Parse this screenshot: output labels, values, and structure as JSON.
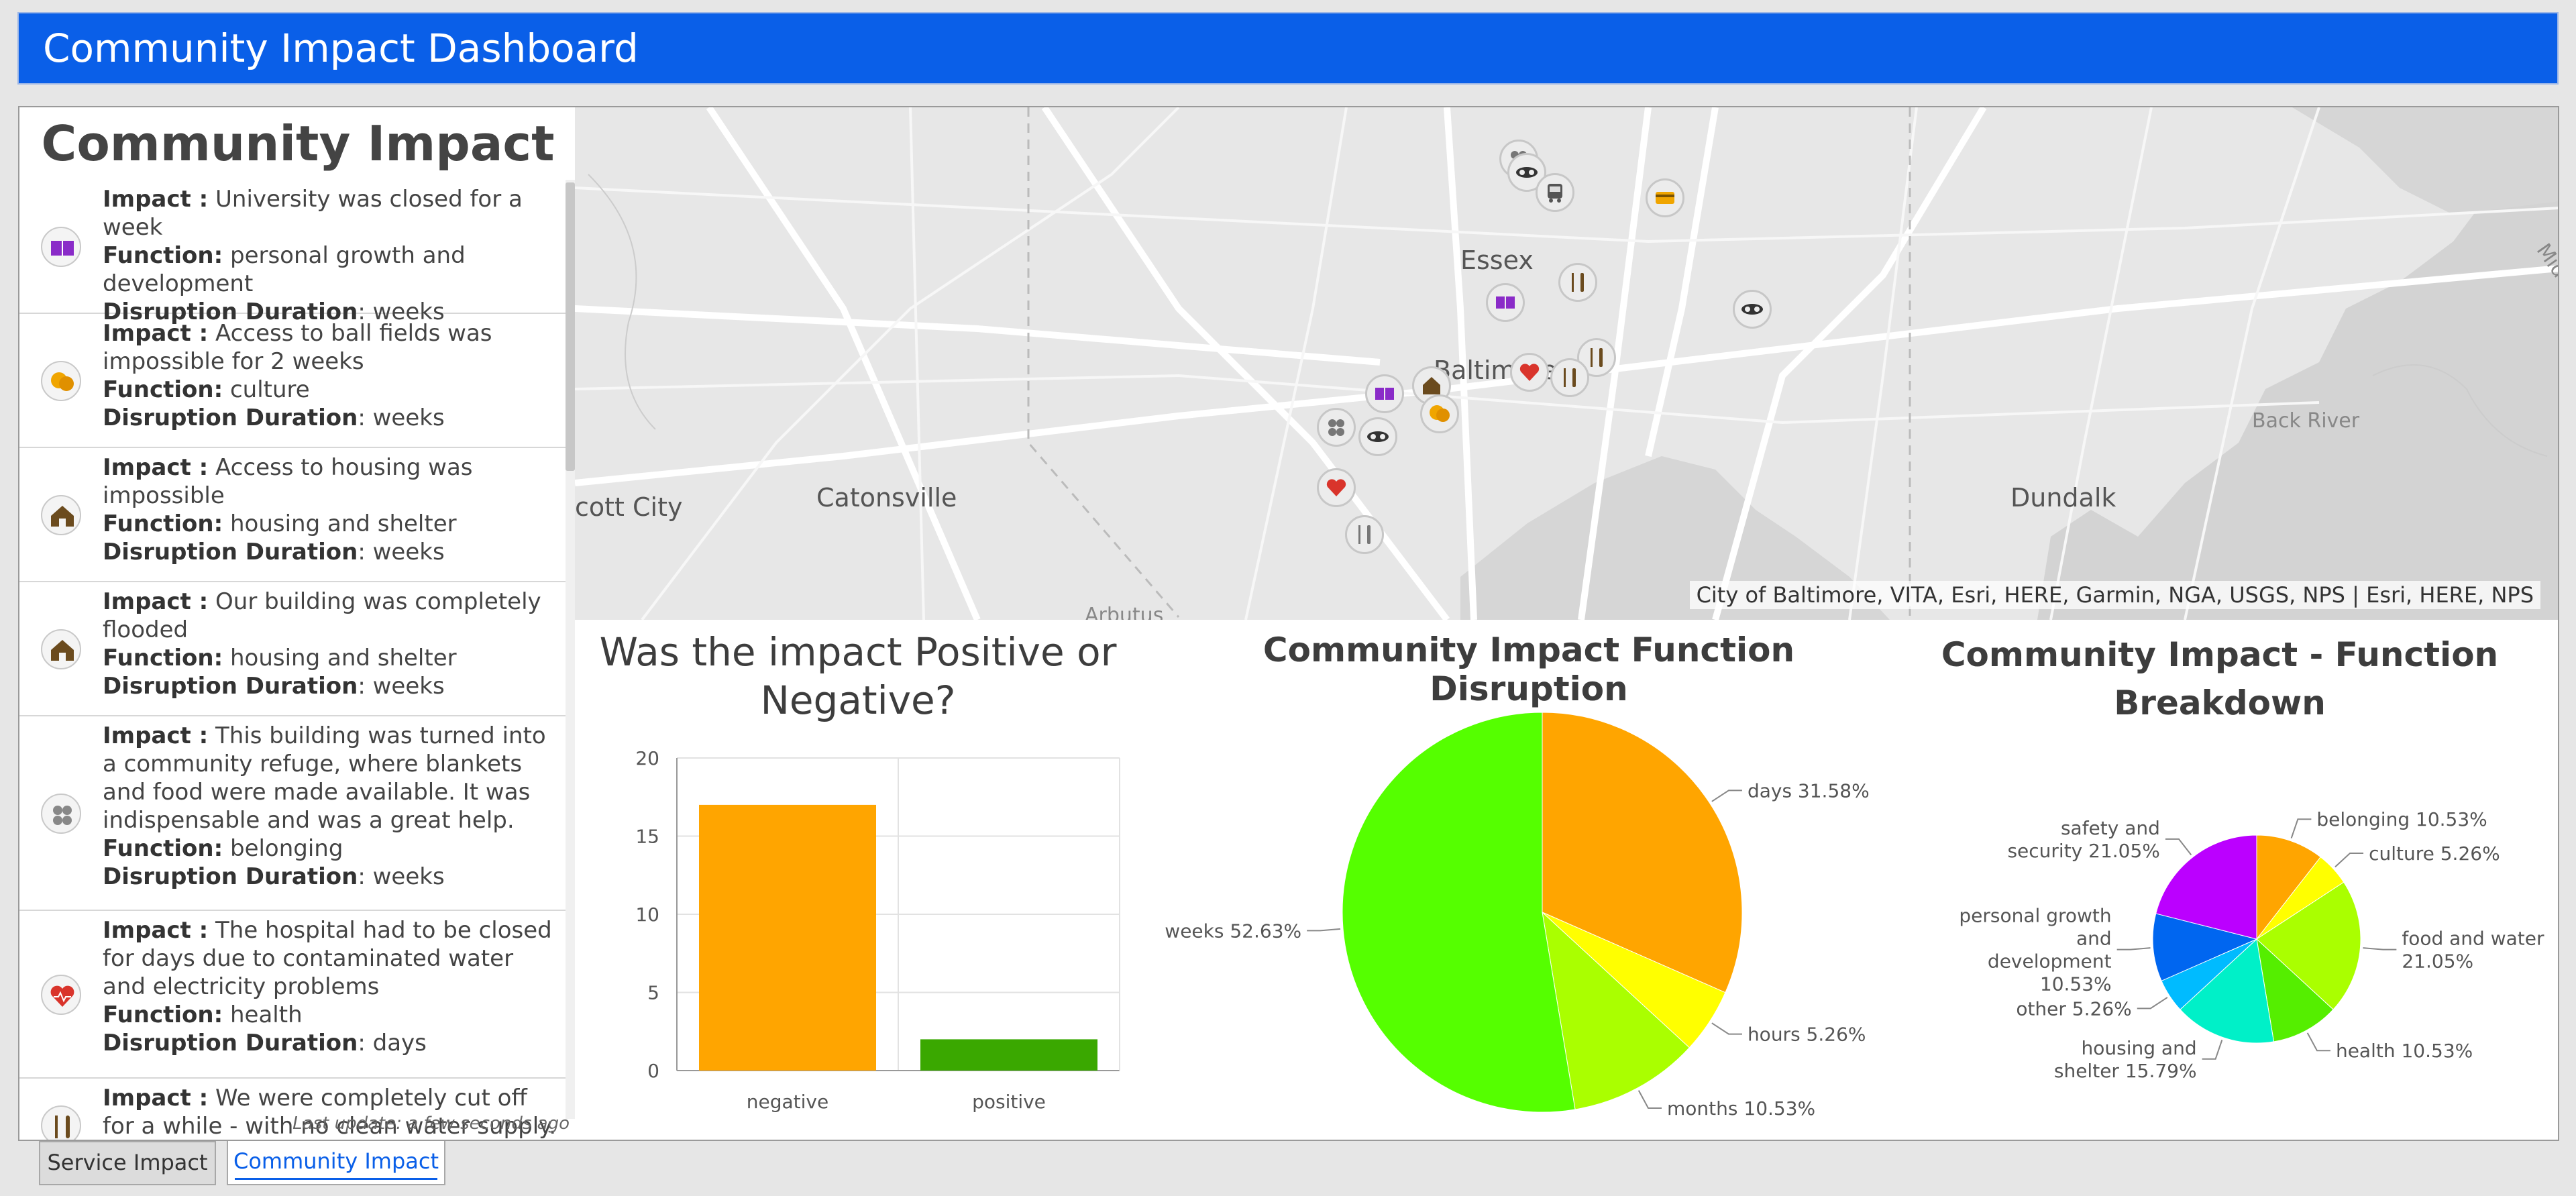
{
  "header": {
    "title": "Community Impact Dashboard"
  },
  "list": {
    "title": "Community Impact",
    "impact_label": "Impact :",
    "function_label": "Function:",
    "duration_label": "Disruption Duration",
    "last_update": "Last update: a few seconds ago",
    "items": [
      {
        "icon": "book-icon",
        "impact": "University was closed for a week",
        "function": "personal growth and development",
        "duration": "weeks"
      },
      {
        "icon": "theater-masks-icon",
        "impact": "Access to ball fields was impossible for 2 weeks",
        "function": "culture",
        "duration": "weeks"
      },
      {
        "icon": "house-icon",
        "impact": "Access to housing was impossible",
        "function": "housing and shelter",
        "duration": "weeks"
      },
      {
        "icon": "house-icon",
        "impact": "Our building was completely flooded",
        "function": "housing and shelter",
        "duration": "weeks"
      },
      {
        "icon": "people-icon",
        "impact": "This building was turned into a community refuge, where blankets and food were made available. It was indispensable and was a great help.",
        "function": "belonging",
        "duration": "weeks"
      },
      {
        "icon": "heart-icon",
        "impact": "The hospital had to be closed for days due to contaminated water and electricity problems",
        "function": "health",
        "duration": "days"
      },
      {
        "icon": "utensils-icon",
        "impact": "We were completely cut off for a while - with no clean water supply.",
        "function": "",
        "duration": ""
      }
    ]
  },
  "map": {
    "labels": [
      "Essex",
      "Baltimore",
      "Catonsville",
      "Dundalk",
      "cott City",
      "Back River",
      "Arbutus",
      "Middle"
    ],
    "attribution": "City of Baltimore, VITA, Esri, HERE, Garmin, NGA, USGS, NPS | Esri, HERE, NPS"
  },
  "charts": {
    "bar_title_1": "Was  the impact Positive or",
    "bar_title_2": "Negative?",
    "pie1_title": "Community Impact Function Disruption",
    "pie2_title_1": "Community Impact - Function",
    "pie2_title_2": "Breakdown"
  },
  "chart_data": [
    {
      "type": "bar",
      "title": "Was  the impact Positive or Negative?",
      "categories": [
        "negative",
        "positive"
      ],
      "values": [
        17,
        2
      ],
      "colors": [
        "#ffa500",
        "#3aa800"
      ],
      "ylim": [
        0,
        20
      ],
      "yticks": [
        "0",
        "5",
        "10",
        "15",
        "20"
      ],
      "grid": true
    },
    {
      "type": "pie",
      "title": "Community Impact Function Disruption",
      "slices": [
        {
          "label": "days 31.58%",
          "value": 31.58,
          "color": "#ffa500"
        },
        {
          "label": "hours 5.26%",
          "value": 5.26,
          "color": "#ffff00"
        },
        {
          "label": "months 10.53%",
          "value": 10.53,
          "color": "#aaff00"
        },
        {
          "label": "weeks 52.63%",
          "value": 52.63,
          "color": "#55ff00"
        }
      ]
    },
    {
      "type": "pie",
      "title": "Community Impact - Function Breakdown",
      "slices": [
        {
          "label": [
            "belonging 10.53%"
          ],
          "value": 10.53,
          "color": "#ffa500"
        },
        {
          "label": [
            "culture 5.26%"
          ],
          "value": 5.26,
          "color": "#ffff00"
        },
        {
          "label": [
            "food and water",
            "21.05%"
          ],
          "value": 21.05,
          "color": "#aaff00"
        },
        {
          "label": [
            "health 10.53%"
          ],
          "value": 10.53,
          "color": "#55ee00"
        },
        {
          "label": [
            "housing and",
            "shelter 15.79%"
          ],
          "value": 15.79,
          "color": "#00f0c8"
        },
        {
          "label": [
            "other 5.26%"
          ],
          "value": 5.26,
          "color": "#00bbff"
        },
        {
          "label": [
            "personal growth",
            "and",
            "development",
            "10.53%"
          ],
          "value": 10.53,
          "color": "#0066f0"
        },
        {
          "label": [
            "safety and",
            "security 21.05%"
          ],
          "value": 21.05,
          "color": "#bb00ff"
        }
      ]
    }
  ],
  "tabs": [
    {
      "label": "Service Impact",
      "active": false
    },
    {
      "label": "Community Impact",
      "active": true
    }
  ]
}
